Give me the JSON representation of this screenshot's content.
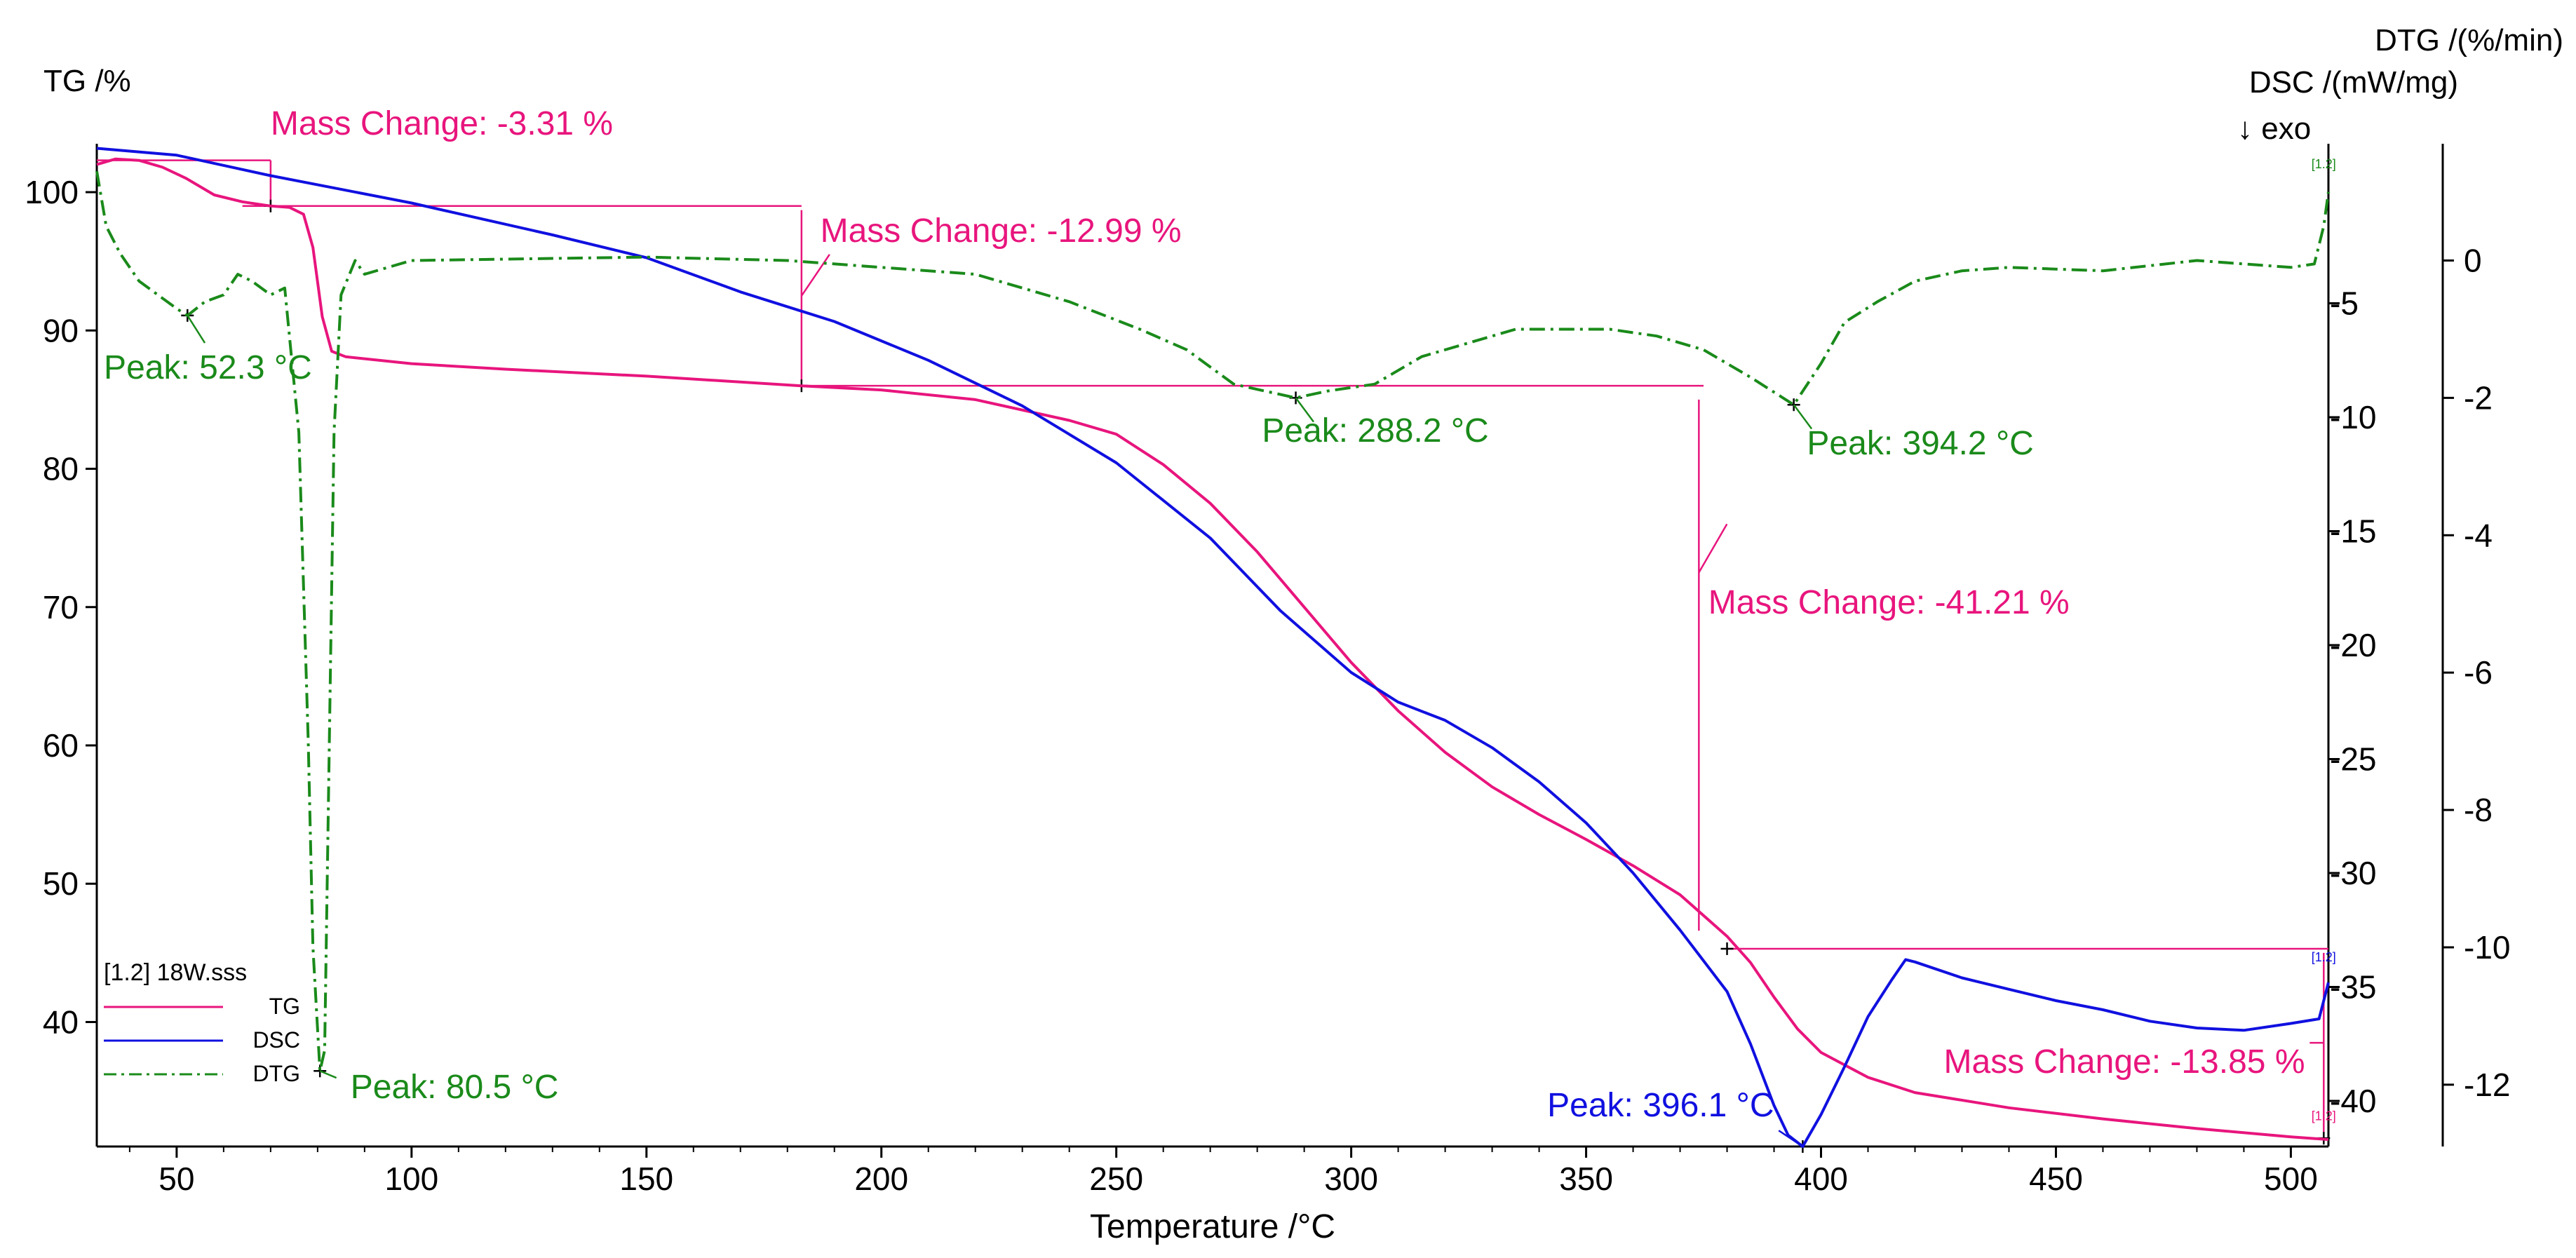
{
  "chart_data": {
    "type": "line",
    "title": "",
    "xlabel": "Temperature /°C",
    "xlim": [
      33,
      508
    ],
    "x_ticks": [
      50,
      100,
      150,
      200,
      250,
      300,
      350,
      400,
      450,
      500
    ],
    "axes": {
      "tg": {
        "label": "TG /%",
        "ylim": [
          31,
          103.5
        ],
        "ticks": [
          40,
          50,
          60,
          70,
          80,
          90,
          100
        ]
      },
      "dsc": {
        "label": "DSC /(mW/mg)",
        "exo_label": "↓  exo",
        "ylim": [
          -42,
          2.0
        ],
        "ticks": [
          -5,
          -10,
          -15,
          -20,
          -25,
          -30,
          -35,
          -40
        ]
      },
      "dtg": {
        "label": "DTG /(%/min)",
        "ylim": [
          -12.9,
          1.7
        ],
        "ticks": [
          0,
          -2,
          -4,
          -6,
          -8,
          -10,
          -12
        ]
      }
    },
    "colors": {
      "tg": "#e8157d",
      "dsc": "#1010e0",
      "dtg": "#1a8a1a",
      "axis": "#000000"
    },
    "legend": {
      "title": "[1.2] 18W.sss",
      "position": "bottom-left",
      "entries": [
        {
          "name": "TG",
          "color": "#e8157d",
          "style": "solid"
        },
        {
          "name": "DSC",
          "color": "#1010e0",
          "style": "solid"
        },
        {
          "name": "DTG",
          "color": "#1a8a1a",
          "style": "dash-dot"
        }
      ]
    },
    "series": [
      {
        "name": "TG",
        "axis": "tg",
        "color": "#e8157d",
        "points": [
          [
            33,
            102
          ],
          [
            37,
            102.4
          ],
          [
            42,
            102.3
          ],
          [
            47,
            101.8
          ],
          [
            52,
            101
          ],
          [
            58,
            99.8
          ],
          [
            64,
            99.3
          ],
          [
            70,
            99
          ],
          [
            74,
            98.9
          ],
          [
            77,
            98.4
          ],
          [
            79,
            96
          ],
          [
            81,
            91
          ],
          [
            83,
            88.5
          ],
          [
            86,
            88.1
          ],
          [
            100,
            87.6
          ],
          [
            120,
            87.2
          ],
          [
            150,
            86.7
          ],
          [
            183,
            86
          ],
          [
            200,
            85.7
          ],
          [
            220,
            85
          ],
          [
            240,
            83.5
          ],
          [
            250,
            82.5
          ],
          [
            260,
            80.3
          ],
          [
            270,
            77.5
          ],
          [
            280,
            74
          ],
          [
            290,
            70
          ],
          [
            300,
            66
          ],
          [
            310,
            62.5
          ],
          [
            320,
            59.5
          ],
          [
            330,
            57
          ],
          [
            340,
            55
          ],
          [
            350,
            53.2
          ],
          [
            360,
            51.3
          ],
          [
            370,
            49.2
          ],
          [
            380,
            46.2
          ],
          [
            385,
            44.3
          ],
          [
            390,
            41.8
          ],
          [
            395,
            39.5
          ],
          [
            400,
            37.8
          ],
          [
            410,
            36
          ],
          [
            420,
            34.9
          ],
          [
            440,
            33.8
          ],
          [
            460,
            33
          ],
          [
            480,
            32.3
          ],
          [
            500,
            31.7
          ],
          [
            508,
            31.5
          ]
        ]
      },
      {
        "name": "DSC",
        "axis": "dsc",
        "color": "#1010e0",
        "points": [
          [
            33,
            1.8
          ],
          [
            50,
            1.5
          ],
          [
            70,
            0.6
          ],
          [
            100,
            -0.6
          ],
          [
            130,
            -2
          ],
          [
            150,
            -3
          ],
          [
            170,
            -4.5
          ],
          [
            190,
            -5.8
          ],
          [
            210,
            -7.5
          ],
          [
            230,
            -9.5
          ],
          [
            250,
            -12
          ],
          [
            270,
            -15.3
          ],
          [
            285,
            -18.5
          ],
          [
            300,
            -21.2
          ],
          [
            310,
            -22.5
          ],
          [
            320,
            -23.3
          ],
          [
            330,
            -24.5
          ],
          [
            340,
            -26
          ],
          [
            350,
            -27.8
          ],
          [
            360,
            -30
          ],
          [
            370,
            -32.5
          ],
          [
            380,
            -35.2
          ],
          [
            385,
            -37.5
          ],
          [
            390,
            -40.2
          ],
          [
            393,
            -41.5
          ],
          [
            396.1,
            -42
          ],
          [
            400,
            -40.6
          ],
          [
            405,
            -38.5
          ],
          [
            410,
            -36.3
          ],
          [
            415,
            -34.7
          ],
          [
            418,
            -33.8
          ],
          [
            420,
            -33.9
          ],
          [
            430,
            -34.6
          ],
          [
            440,
            -35.1
          ],
          [
            450,
            -35.6
          ],
          [
            460,
            -36
          ],
          [
            470,
            -36.5
          ],
          [
            480,
            -36.8
          ],
          [
            490,
            -36.9
          ],
          [
            500,
            -36.6
          ],
          [
            506,
            -36.4
          ],
          [
            508,
            -34.8
          ]
        ]
      },
      {
        "name": "DTG",
        "axis": "dtg",
        "color": "#1a8a1a",
        "points": [
          [
            33,
            1.3
          ],
          [
            35,
            0.5
          ],
          [
            38,
            0.1
          ],
          [
            42,
            -0.3
          ],
          [
            46,
            -0.5
          ],
          [
            50,
            -0.7
          ],
          [
            52.3,
            -0.8
          ],
          [
            56,
            -0.6
          ],
          [
            60,
            -0.5
          ],
          [
            63,
            -0.2
          ],
          [
            66,
            -0.3
          ],
          [
            70,
            -0.5
          ],
          [
            73,
            -0.4
          ],
          [
            76,
            -2.5
          ],
          [
            78,
            -7
          ],
          [
            79,
            -10
          ],
          [
            80.5,
            -11.8
          ],
          [
            81.5,
            -11.5
          ],
          [
            82.5,
            -7
          ],
          [
            83.5,
            -2.5
          ],
          [
            85,
            -0.5
          ],
          [
            88,
            0
          ],
          [
            90,
            -0.2
          ],
          [
            95,
            -0.1
          ],
          [
            100,
            0
          ],
          [
            150,
            0.05
          ],
          [
            180,
            0
          ],
          [
            200,
            -0.1
          ],
          [
            220,
            -0.2
          ],
          [
            240,
            -0.6
          ],
          [
            255,
            -1
          ],
          [
            265,
            -1.3
          ],
          [
            275,
            -1.8
          ],
          [
            288.2,
            -2.0
          ],
          [
            295,
            -1.9
          ],
          [
            305,
            -1.8
          ],
          [
            315,
            -1.4
          ],
          [
            325,
            -1.2
          ],
          [
            335,
            -1.0
          ],
          [
            345,
            -1.0
          ],
          [
            355,
            -1.0
          ],
          [
            365,
            -1.1
          ],
          [
            375,
            -1.3
          ],
          [
            385,
            -1.7
          ],
          [
            394.2,
            -2.1
          ],
          [
            400,
            -1.5
          ],
          [
            405,
            -0.9
          ],
          [
            412,
            -0.6
          ],
          [
            420,
            -0.3
          ],
          [
            430,
            -0.15
          ],
          [
            440,
            -0.1
          ],
          [
            460,
            -0.15
          ],
          [
            480,
            0
          ],
          [
            500,
            -0.1
          ],
          [
            505,
            -0.05
          ],
          [
            507,
            0.5
          ],
          [
            508,
            1.0
          ]
        ]
      }
    ],
    "annotations": [
      {
        "id": "mc1",
        "text": "Mass Change: -3.31 %",
        "color": "#e8157d"
      },
      {
        "id": "mc2",
        "text": "Mass Change: -12.99 %",
        "color": "#e8157d"
      },
      {
        "id": "mc3",
        "text": "Mass Change: -41.21 %",
        "color": "#e8157d"
      },
      {
        "id": "mc4",
        "text": "Mass Change: -13.85 %",
        "color": "#e8157d"
      },
      {
        "id": "pk1",
        "text": "Peak: 52.3 °C",
        "color": "#1a8a1a"
      },
      {
        "id": "pk2",
        "text": "Peak: 80.5 °C",
        "color": "#1a8a1a"
      },
      {
        "id": "pk3",
        "text": "Peak: 288.2 °C",
        "color": "#1a8a1a"
      },
      {
        "id": "pk4",
        "text": "Peak: 394.2 °C",
        "color": "#1a8a1a"
      },
      {
        "id": "pk5",
        "text": "Peak: 396.1 °C",
        "color": "#1010e0"
      }
    ],
    "end_markers": [
      "[1.2]",
      "[1.2]",
      "[1.2]"
    ]
  }
}
